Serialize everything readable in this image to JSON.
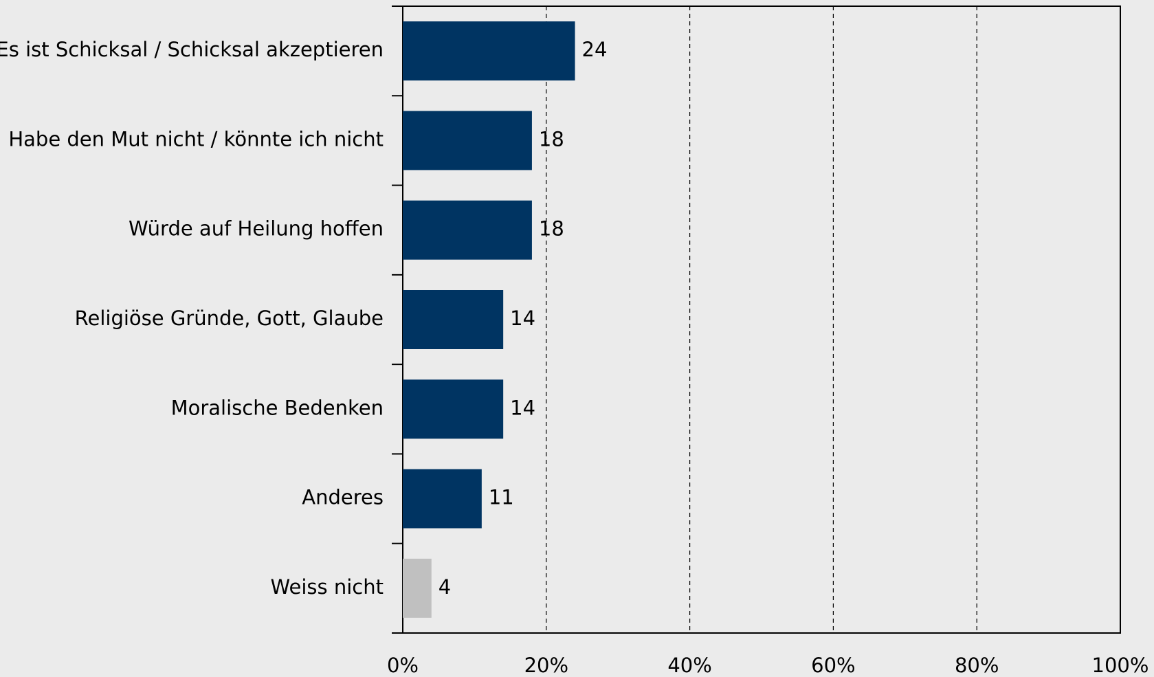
{
  "chart_data": {
    "type": "hbar",
    "categories": [
      "Es ist Schicksal / Schicksal akzeptieren",
      "Habe den Mut nicht / könnte ich nicht",
      "Würde auf Heilung hoffen",
      "Religiöse Gründe, Gott, Glaube",
      "Moralische Bedenken",
      "Anderes",
      "Weiss nicht"
    ],
    "values": [
      24,
      18,
      18,
      14,
      14,
      11,
      4
    ],
    "colors": [
      "#003462",
      "#003462",
      "#003462",
      "#003462",
      "#003462",
      "#003462",
      "#c0c0c0"
    ],
    "xlim": [
      0,
      100
    ],
    "xticks": [
      {
        "value": 0,
        "label": "0%"
      },
      {
        "value": 20,
        "label": "20%"
      },
      {
        "value": 40,
        "label": "40%"
      },
      {
        "value": 60,
        "label": "60%"
      },
      {
        "value": 80,
        "label": "80%"
      },
      {
        "value": 100,
        "label": "100%"
      }
    ],
    "grid": true
  }
}
